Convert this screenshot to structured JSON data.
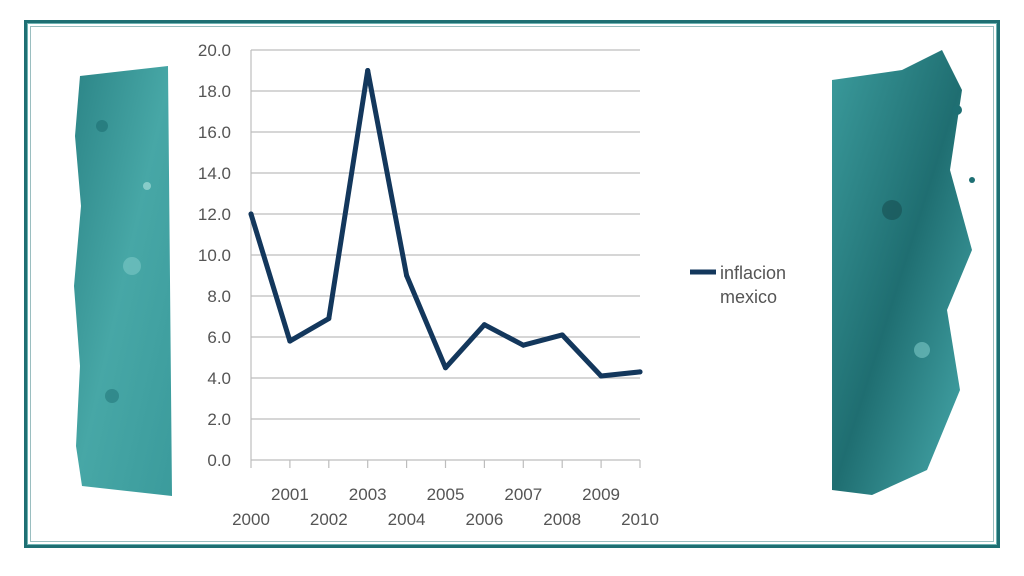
{
  "colors": {
    "line": "#13375c",
    "grid": "#bdbdbd",
    "accent": "#2a8a8c",
    "frame": "#1e6f73"
  },
  "chart_data": {
    "type": "line",
    "title": "",
    "xlabel": "",
    "ylabel": "",
    "x": [
      "2000",
      "2001",
      "2002",
      "2003",
      "2004",
      "2005",
      "2006",
      "2007",
      "2008",
      "2009",
      "2010"
    ],
    "series": [
      {
        "name": "inflacion mexico",
        "values": [
          12.0,
          5.8,
          6.9,
          19.0,
          9.0,
          4.5,
          6.6,
          5.6,
          6.1,
          4.1,
          4.3
        ]
      }
    ],
    "ylim": [
      0,
      20
    ],
    "yticks": [
      "0.0",
      "2.0",
      "4.0",
      "6.0",
      "8.0",
      "10.0",
      "12.0",
      "14.0",
      "16.0",
      "18.0",
      "20.0"
    ],
    "grid": true,
    "legend": {
      "position": "right",
      "labels": [
        "inflacion",
        "mexico"
      ]
    }
  }
}
